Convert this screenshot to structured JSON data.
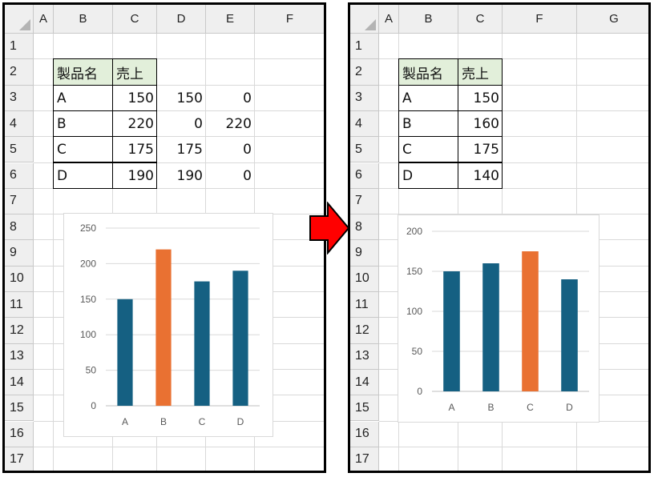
{
  "left": {
    "columns": [
      "A",
      "B",
      "C",
      "D",
      "E",
      "F"
    ],
    "rows": [
      "1",
      "2",
      "3",
      "4",
      "5",
      "6",
      "7",
      "8",
      "9",
      "10",
      "11",
      "12",
      "13",
      "14",
      "15",
      "16",
      "17"
    ],
    "table": {
      "header": [
        "製品名",
        "売上"
      ],
      "rows": [
        [
          "A",
          "150",
          "150",
          "0"
        ],
        [
          "B",
          "220",
          "0",
          "220"
        ],
        [
          "C",
          "175",
          "175",
          "0"
        ],
        [
          "D",
          "190",
          "190",
          "0"
        ]
      ]
    },
    "chart_data": {
      "type": "bar",
      "categories": [
        "A",
        "B",
        "C",
        "D"
      ],
      "series": [
        {
          "values": [
            150,
            0,
            175,
            190
          ],
          "color": "#156082"
        },
        {
          "values": [
            0,
            220,
            0,
            0
          ],
          "color": "#e97132"
        }
      ],
      "yticks": [
        "0",
        "50",
        "100",
        "150",
        "200",
        "250"
      ],
      "ylim": [
        0,
        250
      ],
      "grid": true
    }
  },
  "right": {
    "columns": [
      "A",
      "B",
      "C",
      "F",
      "G"
    ],
    "rows": [
      "1",
      "2",
      "3",
      "4",
      "5",
      "6",
      "7",
      "8",
      "9",
      "10",
      "11",
      "12",
      "13",
      "14",
      "15",
      "16",
      "17"
    ],
    "table": {
      "header": [
        "製品名",
        "売上"
      ],
      "rows": [
        [
          "A",
          "150"
        ],
        [
          "B",
          "160"
        ],
        [
          "C",
          "175"
        ],
        [
          "D",
          "140"
        ]
      ]
    },
    "chart_data": {
      "type": "bar",
      "categories": [
        "A",
        "B",
        "C",
        "D"
      ],
      "values": [
        150,
        160,
        175,
        140
      ],
      "colors": [
        "#156082",
        "#156082",
        "#e97132",
        "#156082"
      ],
      "yticks": [
        "0",
        "50",
        "100",
        "150",
        "200"
      ],
      "ylim": [
        0,
        200
      ],
      "grid": true
    }
  },
  "arrow": {
    "color": "#ff0000",
    "icon": "right-arrow-icon"
  }
}
